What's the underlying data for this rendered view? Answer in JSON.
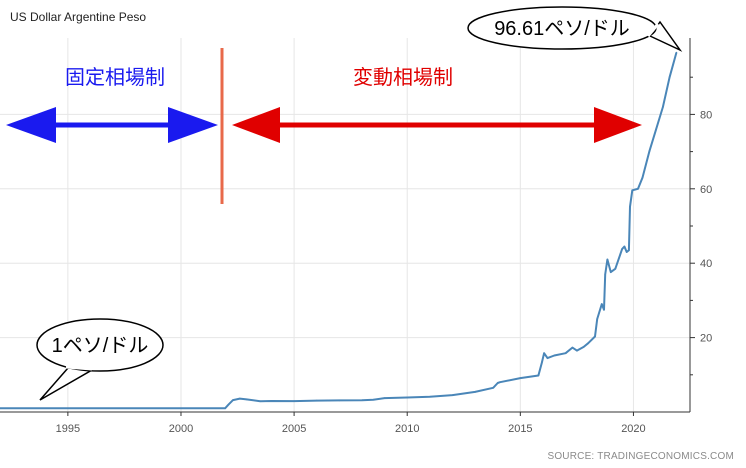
{
  "header": {
    "title": "US Dollar Argentine Peso"
  },
  "footer": {
    "source": "SOURCE: TRADINGECONOMICS.COM"
  },
  "annotations": {
    "fixed_label": "固定相場制",
    "floating_label": "変動相場制",
    "start_bubble": "1ペソ/ドル",
    "end_bubble": "96.61ペソ/ドル"
  },
  "colors": {
    "line": "#4a86b8",
    "fixed": "#1a1aef",
    "floating": "#e00000",
    "divider": "#e8694a",
    "grid": "#e6e6e6",
    "axis": "#333333"
  },
  "chart_data": {
    "type": "line",
    "title": "US Dollar Argentine Peso",
    "xlabel": "",
    "ylabel": "",
    "xlim": [
      1992.0,
      2022.5
    ],
    "ylim": [
      0,
      100
    ],
    "x_ticks": [
      1995,
      2000,
      2005,
      2010,
      2015,
      2020
    ],
    "y_ticks": [
      20,
      40,
      60,
      80
    ],
    "y_axis_side": "right",
    "grid": true,
    "events": [
      {
        "x": 2002.0,
        "label": "固定相場制 / 変動相場制"
      }
    ],
    "series": [
      {
        "x": [
          1992.0,
          2001.95,
          2002.1,
          2002.3,
          2002.6,
          2002.9,
          2003.5,
          2004,
          2005,
          2006,
          2007,
          2008,
          2008.5,
          2009,
          2010,
          2011,
          2012,
          2013,
          2013.8,
          2014.0,
          2014.1,
          2015,
          2015.8,
          2015.95,
          2016.05,
          2016.2,
          2016.5,
          2017,
          2017.3,
          2017.5,
          2017.8,
          2018.0,
          2018.3,
          2018.4,
          2018.6,
          2018.7,
          2018.75,
          2018.85,
          2019.0,
          2019.2,
          2019.5,
          2019.6,
          2019.7,
          2019.8,
          2019.85,
          2019.95,
          2020.2,
          2020.4,
          2020.7,
          2021.0,
          2021.3,
          2021.6,
          2021.9
        ],
        "y": [
          1.0,
          1.0,
          2.0,
          3.2,
          3.6,
          3.4,
          2.9,
          2.95,
          2.92,
          3.07,
          3.12,
          3.16,
          3.3,
          3.73,
          3.9,
          4.1,
          4.55,
          5.4,
          6.5,
          7.8,
          8.0,
          9.1,
          9.8,
          13.2,
          15.8,
          14.5,
          15.2,
          15.8,
          17.3,
          16.5,
          17.5,
          18.5,
          20.3,
          25.0,
          29.0,
          27.5,
          37.0,
          41.0,
          37.6,
          38.5,
          43.8,
          44.5,
          43.0,
          43.5,
          55.2,
          59.6,
          60.0,
          63.0,
          70.0,
          76.0,
          82.0,
          90.0,
          96.61
        ]
      }
    ]
  }
}
